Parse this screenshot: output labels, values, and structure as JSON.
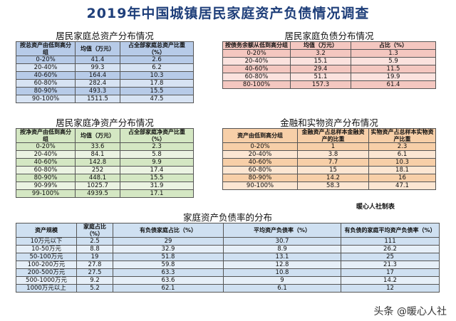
{
  "title": "2019年中国城镇居民家庭资产负债情况调查",
  "t1": {
    "title": "居民家庭总资产分布情况",
    "headers": [
      "按总资产由低到高分组",
      "均值（万元）",
      "占全部家庭总资产比重（%）"
    ],
    "rows": [
      [
        "0-20%",
        "41.4",
        "2.6"
      ],
      [
        "20-40%",
        "99.3",
        "6.2"
      ],
      [
        "40-60%",
        "164.4",
        "10.3"
      ],
      [
        "60-80%",
        "282.4",
        "17.8"
      ],
      [
        "80-90%",
        "493.3",
        "15.5"
      ],
      [
        "90-100%",
        "1511.5",
        "47.5"
      ]
    ]
  },
  "t2": {
    "title": "居民家庭负债分布情况",
    "headers": [
      "按债务余额从低到高分组",
      "均值（万元）",
      "占比（%）"
    ],
    "rows": [
      [
        "0-20%",
        "3.2",
        "1.3"
      ],
      [
        "20-40%",
        "15.1",
        "5.9"
      ],
      [
        "40-60%",
        "29.4",
        "11.5"
      ],
      [
        "60-80%",
        "51.1",
        "19.9"
      ],
      [
        "80-100%",
        "157.3",
        "61.4"
      ]
    ]
  },
  "t3": {
    "title": "居民家庭净资产分布情况",
    "headers": [
      "按净资产由低到高分组",
      "均值（万元）",
      "占全部家庭净资产比重（%）"
    ],
    "rows": [
      [
        "0-20%",
        "33.6",
        "2.3"
      ],
      [
        "20-40%",
        "84.1",
        "5.8"
      ],
      [
        "40-60%",
        "142.8",
        "9.9"
      ],
      [
        "60-80%",
        "252",
        "17.4"
      ],
      [
        "80-90%",
        "448.1",
        "15.5"
      ],
      [
        "90-99%",
        "1025.7",
        "31.9"
      ],
      [
        "99-100%",
        "4939.5",
        "17.1"
      ]
    ]
  },
  "t4": {
    "title": "金融和实物资产分布情况",
    "headers": [
      "资产由低到高分组",
      "金融资产占总样本金融资产的比重",
      "实物资产占总样本实物资产比重"
    ],
    "rows": [
      [
        "0-20%",
        "1",
        "2.3"
      ],
      [
        "20-40%",
        "3.8",
        "6.1"
      ],
      [
        "40-60%",
        "7.7",
        "10.3"
      ],
      [
        "60-80%",
        "15",
        "18.1"
      ],
      [
        "80-90%",
        "14.2",
        "16"
      ],
      [
        "90-100%",
        "58.3",
        "47.1"
      ]
    ],
    "note": "暖心人社制表"
  },
  "t5": {
    "title": "家庭资产负债率的分布",
    "headers": [
      "资产规模",
      "家庭占比（%）",
      "有负债家庭占比（%）",
      "平均资产负债率（%）",
      "有负债的家庭平均资产负债率（%）"
    ],
    "rows": [
      [
        "10万元以下",
        "2.5",
        "29",
        "30.7",
        "111"
      ],
      [
        "10-50万元",
        "8.8",
        "32.9",
        "8.9",
        "26.2"
      ],
      [
        "50-100万元",
        "19",
        "51.8",
        "13.1",
        "25"
      ],
      [
        "100-200万元",
        "27.8",
        "59.8",
        "12.8",
        "21.3"
      ],
      [
        "200-500万元",
        "27.5",
        "63.3",
        "10.8",
        "17"
      ],
      [
        "500-1000万元",
        "9.2",
        "63.6",
        "9",
        "14.2"
      ],
      [
        "1000万元以上",
        "5.2",
        "62.1",
        "6.1",
        "12"
      ]
    ]
  },
  "watermark": "头条 @暖心人社"
}
